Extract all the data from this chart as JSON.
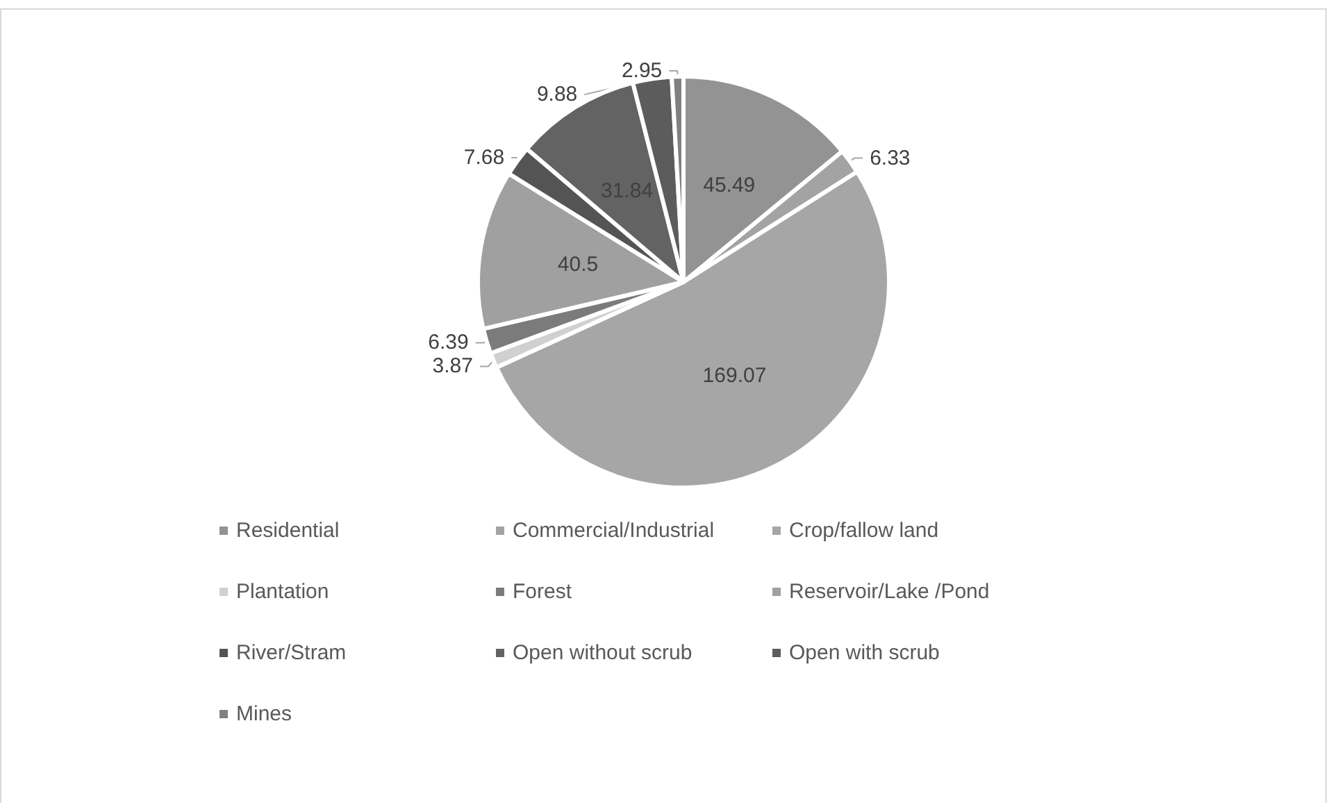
{
  "chart_data": {
    "type": "pie",
    "categories": [
      "Residential",
      "Commercial/Industrial",
      "Crop/fallow land",
      "Plantation",
      "Forest",
      "Reservoir/Lake /Pond",
      "River/Stram",
      "Open without scrub",
      "Open with scrub",
      "Mines"
    ],
    "values": [
      45.49,
      6.33,
      169.07,
      3.87,
      6.39,
      40.5,
      7.68,
      31.84,
      9.88,
      2.95
    ],
    "colors": [
      "#939393",
      "#a3a3a3",
      "#a6a6a6",
      "#d0d0d0",
      "#7b7b7b",
      "#a0a0a0",
      "#545454",
      "#636363",
      "#5c5c5c",
      "#808080"
    ],
    "data_labels": true,
    "legend": "bottom"
  }
}
